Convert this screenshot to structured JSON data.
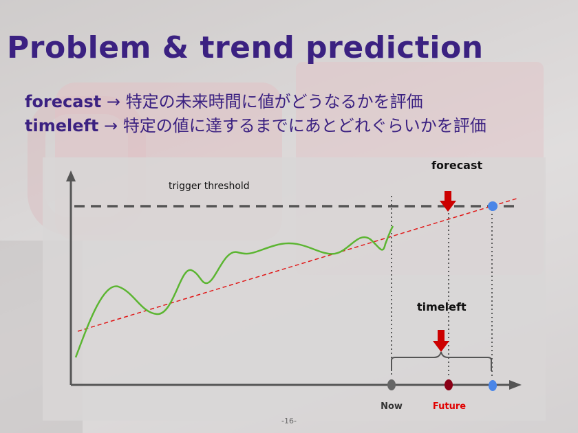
{
  "slide": {
    "title": "Problem & trend prediction",
    "lines": [
      {
        "keyword": "forecast",
        "arrow": "→",
        "text": "特定の未来時間に値がどうなるかを評価"
      },
      {
        "keyword": "timeleft",
        "arrow": "→",
        "text": "特定の値に達するまでにあとどれぐらいかを評価"
      }
    ],
    "page_number": "-16-"
  },
  "diagram": {
    "threshold_label": "trigger threshold",
    "forecast_label": "forecast",
    "timeleft_label": "timeleft",
    "now_label": "Now",
    "future_label": "Future",
    "colors": {
      "metric_line": "#5bb531",
      "trend_line": "#e01818",
      "threshold": "#555555",
      "marker_arrow": "#cc0000",
      "now_dot": "#666666",
      "future_dot": "#8b0016",
      "crossing_dot": "#4a86e8",
      "future_text": "#e00000"
    }
  }
}
